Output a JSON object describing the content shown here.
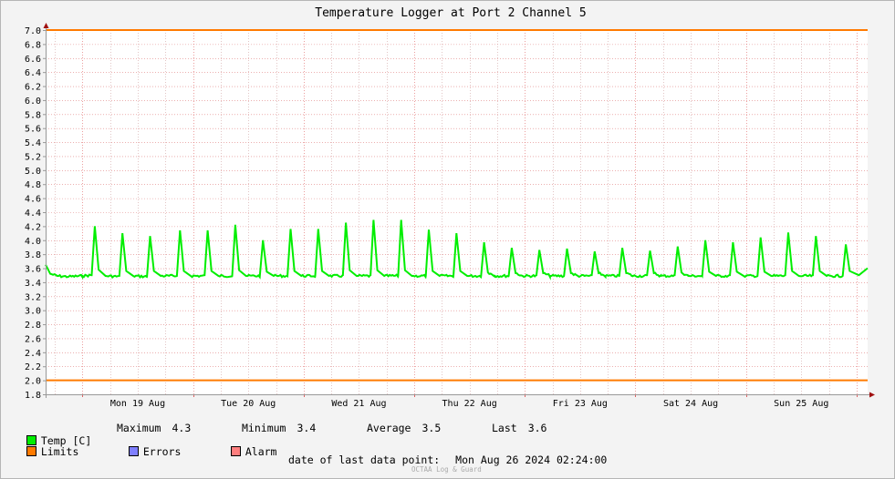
{
  "chart_data": {
    "type": "line",
    "title": "Temperature Logger at Port 2 Channel 5",
    "xlabel": "",
    "ylabel": "",
    "ylim": [
      1.8,
      7.0
    ],
    "y_ticks": [
      "7.0",
      "6.8",
      "6.6",
      "6.4",
      "6.2",
      "6.0",
      "5.8",
      "5.6",
      "5.4",
      "5.2",
      "5.0",
      "4.8",
      "4.6",
      "4.4",
      "4.2",
      "4.0",
      "3.8",
      "3.6",
      "3.4",
      "3.2",
      "3.0",
      "2.8",
      "2.6",
      "2.4",
      "2.2",
      "2.0",
      "1.8"
    ],
    "x_range_days": [
      "2024-08-18 16:00",
      "2024-08-26 02:24"
    ],
    "x_ticks": [
      "Mon 19 Aug",
      "Tue 20 Aug",
      "Wed 21 Aug",
      "Thu 22 Aug",
      "Fri 23 Aug",
      "Sat 24 Aug",
      "Sun 25 Aug"
    ],
    "grid": true,
    "series": [
      {
        "name": "Temp [C]",
        "color": "#00ee00",
        "baseline": 3.5,
        "points": [
          [
            "2024-08-18 16:00",
            3.65
          ],
          [
            "2024-08-18 17:00",
            3.52
          ],
          [
            "2024-08-18 18:30",
            3.49
          ],
          [
            "2024-08-18 21:00",
            3.48
          ],
          [
            "2024-08-19 00:00",
            3.49
          ],
          [
            "2024-08-19 02:00",
            3.5
          ],
          [
            "2024-08-19 02:40",
            4.2
          ],
          [
            "2024-08-19 03:30",
            3.58
          ],
          [
            "2024-08-19 05:00",
            3.49
          ],
          [
            "2024-08-19 08:00",
            3.48
          ],
          [
            "2024-08-19 08:40",
            4.1
          ],
          [
            "2024-08-19 09:30",
            3.56
          ],
          [
            "2024-08-19 11:00",
            3.49
          ],
          [
            "2024-08-19 14:00",
            3.48
          ],
          [
            "2024-08-19 14:40",
            4.06
          ],
          [
            "2024-08-19 15:30",
            3.56
          ],
          [
            "2024-08-19 17:00",
            3.49
          ],
          [
            "2024-08-19 20:30",
            3.49
          ],
          [
            "2024-08-19 21:10",
            4.14
          ],
          [
            "2024-08-19 22:00",
            3.56
          ],
          [
            "2024-08-19 23:30",
            3.49
          ],
          [
            "2024-08-20 02:30",
            3.49
          ],
          [
            "2024-08-20 03:10",
            4.14
          ],
          [
            "2024-08-20 04:00",
            3.56
          ],
          [
            "2024-08-20 05:30",
            3.49
          ],
          [
            "2024-08-20 08:30",
            3.49
          ],
          [
            "2024-08-20 09:10",
            4.22
          ],
          [
            "2024-08-20 10:00",
            3.57
          ],
          [
            "2024-08-20 11:30",
            3.49
          ],
          [
            "2024-08-20 14:30",
            3.49
          ],
          [
            "2024-08-20 15:10",
            4.0
          ],
          [
            "2024-08-20 16:00",
            3.55
          ],
          [
            "2024-08-20 17:30",
            3.49
          ],
          [
            "2024-08-20 20:30",
            3.49
          ],
          [
            "2024-08-20 21:10",
            4.16
          ],
          [
            "2024-08-20 22:00",
            3.56
          ],
          [
            "2024-08-20 23:30",
            3.49
          ],
          [
            "2024-08-21 02:30",
            3.49
          ],
          [
            "2024-08-21 03:10",
            4.16
          ],
          [
            "2024-08-21 04:00",
            3.56
          ],
          [
            "2024-08-21 05:30",
            3.49
          ],
          [
            "2024-08-21 08:30",
            3.49
          ],
          [
            "2024-08-21 09:10",
            4.25
          ],
          [
            "2024-08-21 10:00",
            3.57
          ],
          [
            "2024-08-21 11:30",
            3.49
          ],
          [
            "2024-08-21 14:30",
            3.49
          ],
          [
            "2024-08-21 15:10",
            4.29
          ],
          [
            "2024-08-21 16:00",
            3.57
          ],
          [
            "2024-08-21 17:30",
            3.49
          ],
          [
            "2024-08-21 20:30",
            3.49
          ],
          [
            "2024-08-21 21:10",
            4.29
          ],
          [
            "2024-08-21 22:00",
            3.57
          ],
          [
            "2024-08-21 23:30",
            3.49
          ],
          [
            "2024-08-22 02:30",
            3.49
          ],
          [
            "2024-08-22 03:10",
            4.15
          ],
          [
            "2024-08-22 04:00",
            3.56
          ],
          [
            "2024-08-22 05:30",
            3.49
          ],
          [
            "2024-08-22 08:30",
            3.49
          ],
          [
            "2024-08-22 09:10",
            4.1
          ],
          [
            "2024-08-22 10:00",
            3.56
          ],
          [
            "2024-08-22 11:30",
            3.49
          ],
          [
            "2024-08-22 14:30",
            3.49
          ],
          [
            "2024-08-22 15:10",
            3.97
          ],
          [
            "2024-08-22 16:00",
            3.54
          ],
          [
            "2024-08-22 17:30",
            3.49
          ],
          [
            "2024-08-22 20:30",
            3.49
          ],
          [
            "2024-08-22 21:10",
            3.89
          ],
          [
            "2024-08-22 22:00",
            3.53
          ],
          [
            "2024-08-22 23:30",
            3.49
          ],
          [
            "2024-08-23 02:30",
            3.49
          ],
          [
            "2024-08-23 03:10",
            3.86
          ],
          [
            "2024-08-23 04:00",
            3.53
          ],
          [
            "2024-08-23 05:30",
            3.49
          ],
          [
            "2024-08-23 08:30",
            3.49
          ],
          [
            "2024-08-23 09:10",
            3.88
          ],
          [
            "2024-08-23 10:00",
            3.53
          ],
          [
            "2024-08-23 11:30",
            3.49
          ],
          [
            "2024-08-23 14:30",
            3.49
          ],
          [
            "2024-08-23 15:10",
            3.84
          ],
          [
            "2024-08-23 16:00",
            3.53
          ],
          [
            "2024-08-23 17:30",
            3.49
          ],
          [
            "2024-08-23 20:30",
            3.49
          ],
          [
            "2024-08-23 21:10",
            3.89
          ],
          [
            "2024-08-23 22:00",
            3.53
          ],
          [
            "2024-08-23 23:30",
            3.49
          ],
          [
            "2024-08-24 02:30",
            3.49
          ],
          [
            "2024-08-24 03:10",
            3.85
          ],
          [
            "2024-08-24 04:00",
            3.53
          ],
          [
            "2024-08-24 05:30",
            3.49
          ],
          [
            "2024-08-24 08:30",
            3.49
          ],
          [
            "2024-08-24 09:10",
            3.91
          ],
          [
            "2024-08-24 10:00",
            3.54
          ],
          [
            "2024-08-24 11:30",
            3.49
          ],
          [
            "2024-08-24 14:30",
            3.49
          ],
          [
            "2024-08-24 15:10",
            4.0
          ],
          [
            "2024-08-24 16:00",
            3.55
          ],
          [
            "2024-08-24 17:30",
            3.49
          ],
          [
            "2024-08-24 20:30",
            3.49
          ],
          [
            "2024-08-24 21:10",
            3.97
          ],
          [
            "2024-08-24 22:00",
            3.55
          ],
          [
            "2024-08-24 23:30",
            3.49
          ],
          [
            "2024-08-25 02:30",
            3.49
          ],
          [
            "2024-08-25 03:10",
            4.04
          ],
          [
            "2024-08-25 04:00",
            3.55
          ],
          [
            "2024-08-25 05:30",
            3.49
          ],
          [
            "2024-08-25 08:30",
            3.49
          ],
          [
            "2024-08-25 09:10",
            4.11
          ],
          [
            "2024-08-25 10:00",
            3.56
          ],
          [
            "2024-08-25 11:30",
            3.49
          ],
          [
            "2024-08-25 14:30",
            3.49
          ],
          [
            "2024-08-25 15:10",
            4.06
          ],
          [
            "2024-08-25 16:00",
            3.56
          ],
          [
            "2024-08-25 17:30",
            3.49
          ],
          [
            "2024-08-25 21:00",
            3.49
          ],
          [
            "2024-08-25 21:40",
            3.94
          ],
          [
            "2024-08-25 22:30",
            3.56
          ],
          [
            "2024-08-26 00:30",
            3.5
          ],
          [
            "2024-08-26 02:24",
            3.6
          ]
        ]
      },
      {
        "name": "Limits",
        "color": "#ff7a00",
        "upper": 7.0,
        "lower": 2.0
      },
      {
        "name": "Errors",
        "color": "#7f7fff"
      },
      {
        "name": "Alarm",
        "color": "#ff7f7f"
      }
    ]
  },
  "legend": {
    "temp_label": "Temp [C]",
    "limits_label": "Limits",
    "errors_label": "Errors",
    "alarm_label": "Alarm"
  },
  "stats": {
    "maximum_label": "Maximum",
    "maximum_value": "4.3",
    "minimum_label": "Minimum",
    "minimum_value": "3.4",
    "average_label": "Average",
    "average_value": "3.5",
    "last_label": "Last",
    "last_value": "3.6"
  },
  "footer": {
    "last_point_label": "date of last data point:",
    "last_point_value": "Mon Aug 26 2024 02:24:00",
    "brand": "OCTAA Log & Guard"
  }
}
